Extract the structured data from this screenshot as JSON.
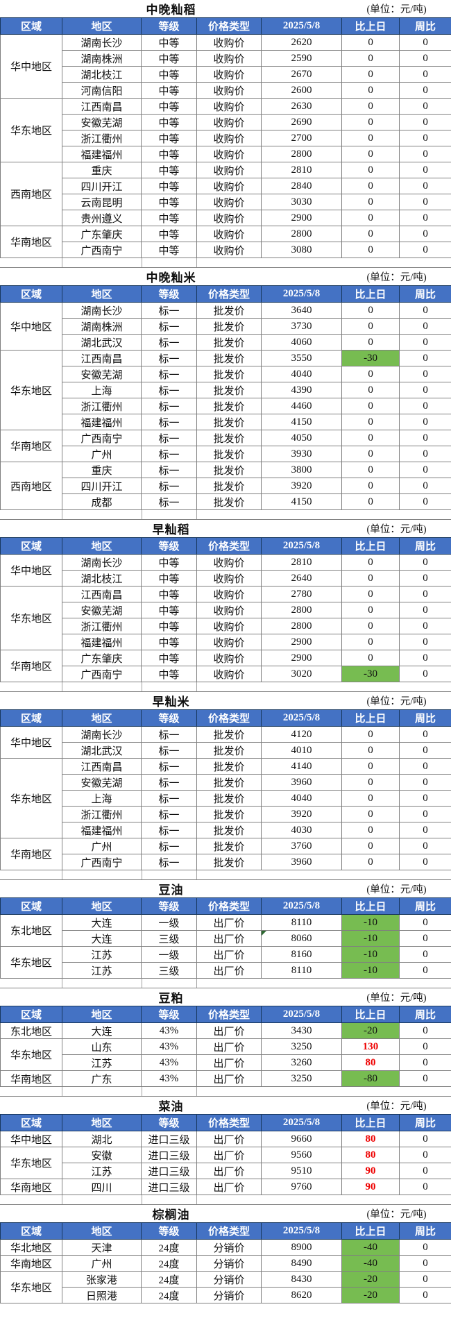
{
  "unit_label": "(单位：元/吨)",
  "column_headers": [
    "区域",
    "地区",
    "等级",
    "价格类型",
    "2025/5/8",
    "比上日",
    "周比"
  ],
  "colors": {
    "header_bg": "#4472C4",
    "header_text": "#FFFFFF",
    "header_border": "#17375E",
    "body_border": "#7F7F7F",
    "down_green_bg": "#77BC51",
    "up_red_text": "#EE0000",
    "note_triangle": "#2D6A31"
  },
  "tables": [
    {
      "title": "中晚籼稻",
      "unit": "(单位：元/吨)",
      "groups": [
        {
          "region": "华中地区",
          "rows": [
            [
              "湖南长沙",
              "中等",
              "收购价",
              "2620",
              "0",
              "",
              "0"
            ],
            [
              "湖南株洲",
              "中等",
              "收购价",
              "2590",
              "0",
              "",
              "0"
            ],
            [
              "湖北枝江",
              "中等",
              "收购价",
              "2670",
              "0",
              "",
              "0"
            ],
            [
              "河南信阳",
              "中等",
              "收购价",
              "2600",
              "0",
              "",
              "0"
            ]
          ]
        },
        {
          "region": "华东地区",
          "rows": [
            [
              "江西南昌",
              "中等",
              "收购价",
              "2630",
              "0",
              "",
              "0"
            ],
            [
              "安徽芜湖",
              "中等",
              "收购价",
              "2690",
              "0",
              "",
              "0"
            ],
            [
              "浙江衢州",
              "中等",
              "收购价",
              "2700",
              "0",
              "",
              "0"
            ],
            [
              "福建福州",
              "中等",
              "收购价",
              "2800",
              "0",
              "",
              "0"
            ]
          ]
        },
        {
          "region": "西南地区",
          "rows": [
            [
              "重庆",
              "中等",
              "收购价",
              "2810",
              "0",
              "",
              "0"
            ],
            [
              "四川开江",
              "中等",
              "收购价",
              "2840",
              "0",
              "",
              "0"
            ],
            [
              "云南昆明",
              "中等",
              "收购价",
              "3030",
              "0",
              "",
              "0"
            ],
            [
              "贵州遵义",
              "中等",
              "收购价",
              "2900",
              "0",
              "",
              "0"
            ]
          ]
        },
        {
          "region": "华南地区",
          "rows": [
            [
              "广东肇庆",
              "中等",
              "收购价",
              "2800",
              "0",
              "",
              "0"
            ],
            [
              "广西南宁",
              "中等",
              "收购价",
              "3080",
              "0",
              "",
              "0"
            ]
          ]
        }
      ]
    },
    {
      "title": "中晚籼米",
      "unit": "(单位：元/吨)",
      "groups": [
        {
          "region": "华中地区",
          "rows": [
            [
              "湖南长沙",
              "标一",
              "批发价",
              "3640",
              "0",
              "",
              "0"
            ],
            [
              "湖南株洲",
              "标一",
              "批发价",
              "3730",
              "0",
              "",
              "0"
            ],
            [
              "湖北武汉",
              "标一",
              "批发价",
              "4060",
              "0",
              "",
              "0"
            ]
          ]
        },
        {
          "region": "华东地区",
          "rows": [
            [
              "江西南昌",
              "标一",
              "批发价",
              "3550",
              "-30",
              "green",
              "0"
            ],
            [
              "安徽芜湖",
              "标一",
              "批发价",
              "4040",
              "0",
              "",
              "0"
            ],
            [
              "上海",
              "标一",
              "批发价",
              "4390",
              "0",
              "",
              "0"
            ],
            [
              "浙江衢州",
              "标一",
              "批发价",
              "4460",
              "0",
              "",
              "0"
            ],
            [
              "福建福州",
              "标一",
              "批发价",
              "4150",
              "0",
              "",
              "0"
            ]
          ]
        },
        {
          "region": "华南地区",
          "rows": [
            [
              "广西南宁",
              "标一",
              "批发价",
              "4050",
              "0",
              "",
              "0"
            ],
            [
              "广州",
              "标一",
              "批发价",
              "3930",
              "0",
              "",
              "0"
            ]
          ]
        },
        {
          "region": "西南地区",
          "rows": [
            [
              "重庆",
              "标一",
              "批发价",
              "3800",
              "0",
              "",
              "0"
            ],
            [
              "四川开江",
              "标一",
              "批发价",
              "3920",
              "0",
              "",
              "0"
            ],
            [
              "成都",
              "标一",
              "批发价",
              "4150",
              "0",
              "",
              "0"
            ]
          ]
        }
      ]
    },
    {
      "title": "早籼稻",
      "unit": "(单位：元/吨)",
      "groups": [
        {
          "region": "华中地区",
          "rows": [
            [
              "湖南长沙",
              "中等",
              "收购价",
              "2810",
              "0",
              "",
              "0"
            ],
            [
              "湖北枝江",
              "中等",
              "收购价",
              "2640",
              "0",
              "",
              "0"
            ]
          ]
        },
        {
          "region": "华东地区",
          "rows": [
            [
              "江西南昌",
              "中等",
              "收购价",
              "2780",
              "0",
              "",
              "0"
            ],
            [
              "安徽芜湖",
              "中等",
              "收购价",
              "2800",
              "0",
              "",
              "0"
            ],
            [
              "浙江衢州",
              "中等",
              "收购价",
              "2800",
              "0",
              "",
              "0"
            ],
            [
              "福建福州",
              "中等",
              "收购价",
              "2900",
              "0",
              "",
              "0"
            ]
          ]
        },
        {
          "region": "华南地区",
          "rows": [
            [
              "广东肇庆",
              "中等",
              "收购价",
              "2900",
              "0",
              "",
              "0"
            ],
            [
              "广西南宁",
              "中等",
              "收购价",
              "3020",
              "-30",
              "green",
              "0"
            ]
          ]
        }
      ]
    },
    {
      "title": "早籼米",
      "unit": "(单位：元/吨)",
      "groups": [
        {
          "region": "华中地区",
          "rows": [
            [
              "湖南长沙",
              "标一",
              "批发价",
              "4120",
              "0",
              "",
              "0"
            ],
            [
              "湖北武汉",
              "标一",
              "批发价",
              "4010",
              "0",
              "",
              "0"
            ]
          ]
        },
        {
          "region": "华东地区",
          "rows": [
            [
              "江西南昌",
              "标一",
              "批发价",
              "4140",
              "0",
              "",
              "0"
            ],
            [
              "安徽芜湖",
              "标一",
              "批发价",
              "3960",
              "0",
              "",
              "0"
            ],
            [
              "上海",
              "标一",
              "批发价",
              "4040",
              "0",
              "",
              "0"
            ],
            [
              "浙江衢州",
              "标一",
              "批发价",
              "3920",
              "0",
              "",
              "0"
            ],
            [
              "福建福州",
              "标一",
              "批发价",
              "4030",
              "0",
              "",
              "0"
            ]
          ]
        },
        {
          "region": "华南地区",
          "rows": [
            [
              "广州",
              "标一",
              "批发价",
              "3760",
              "0",
              "",
              "0"
            ],
            [
              "广西南宁",
              "标一",
              "批发价",
              "3960",
              "0",
              "",
              "0"
            ]
          ]
        }
      ]
    },
    {
      "title": "豆油",
      "unit": "(单位：元/吨)",
      "groups": [
        {
          "region": "东北地区",
          "rows": [
            [
              "大连",
              "一级",
              "出厂价",
              "8110",
              "-10",
              "green",
              "0"
            ],
            [
              "大连",
              "三级",
              "出厂价",
              "8060",
              "-10",
              "green",
              "0",
              "note"
            ]
          ]
        },
        {
          "region": "华东地区",
          "rows": [
            [
              "江苏",
              "一级",
              "出厂价",
              "8160",
              "-10",
              "green",
              "0"
            ],
            [
              "江苏",
              "三级",
              "出厂价",
              "8110",
              "-10",
              "green",
              "0"
            ]
          ]
        }
      ]
    },
    {
      "title": "豆粕",
      "unit": "(单位：元/吨)",
      "groups": [
        {
          "region": "东北地区",
          "rows": [
            [
              "大连",
              "43%",
              "出厂价",
              "3430",
              "-20",
              "green",
              "0"
            ]
          ]
        },
        {
          "region": "华东地区",
          "rows": [
            [
              "山东",
              "43%",
              "出厂价",
              "3250",
              "130",
              "red",
              "0"
            ],
            [
              "江苏",
              "43%",
              "出厂价",
              "3260",
              "80",
              "red",
              "0"
            ]
          ]
        },
        {
          "region": "华南地区",
          "rows": [
            [
              "广东",
              "43%",
              "出厂价",
              "3250",
              "-80",
              "green",
              "0"
            ]
          ]
        }
      ]
    },
    {
      "title": "菜油",
      "unit": "(单位：元/吨)",
      "groups": [
        {
          "region": "华中地区",
          "rows": [
            [
              "湖北",
              "进口三级",
              "出厂价",
              "9660",
              "80",
              "red",
              "0"
            ]
          ]
        },
        {
          "region": "华东地区",
          "rows": [
            [
              "安徽",
              "进口三级",
              "出厂价",
              "9560",
              "80",
              "red",
              "0"
            ],
            [
              "江苏",
              "进口三级",
              "出厂价",
              "9510",
              "90",
              "red",
              "0"
            ]
          ]
        },
        {
          "region": "华南地区",
          "rows": [
            [
              "四川",
              "进口三级",
              "出厂价",
              "9760",
              "90",
              "red",
              "0"
            ]
          ]
        }
      ]
    },
    {
      "title": "棕榈油",
      "unit": "(单位：元/吨)",
      "groups": [
        {
          "region": "华北地区",
          "rows": [
            [
              "天津",
              "24度",
              "分销价",
              "8900",
              "-40",
              "green",
              "0"
            ]
          ]
        },
        {
          "region": "华南地区",
          "rows": [
            [
              "广州",
              "24度",
              "分销价",
              "8490",
              "-40",
              "green",
              "0"
            ]
          ]
        },
        {
          "region": "华东地区",
          "rows": [
            [
              "张家港",
              "24度",
              "分销价",
              "8430",
              "-20",
              "green",
              "0"
            ],
            [
              "日照港",
              "24度",
              "分销价",
              "8620",
              "-20",
              "green",
              "0"
            ]
          ]
        }
      ]
    }
  ]
}
